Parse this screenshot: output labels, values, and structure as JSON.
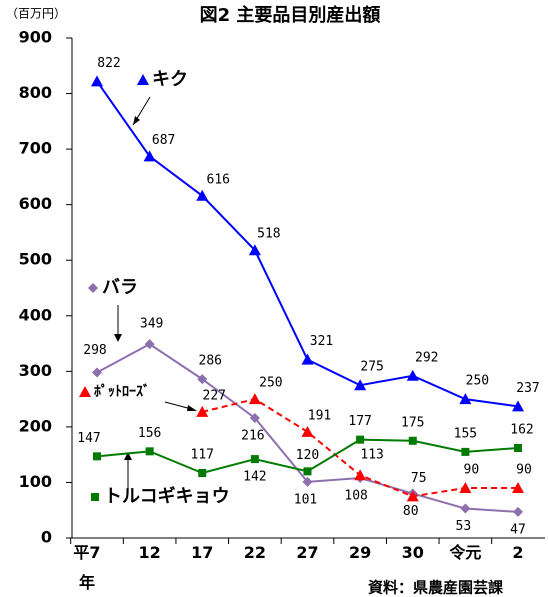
{
  "chart_data": {
    "type": "line",
    "title": "図2 主要品目別産出額",
    "y_unit": "（百万円）",
    "source": "資料：県農産園芸課",
    "categories": [
      "平7年",
      "12",
      "17",
      "22",
      "27",
      "29",
      "30",
      "令元",
      "2"
    ],
    "series": [
      {
        "name": "キク",
        "color": "#0000ff",
        "marker": "triangle",
        "dashed": false,
        "values": [
          822,
          687,
          616,
          518,
          321,
          275,
          292,
          250,
          237
        ]
      },
      {
        "name": "バラ",
        "color": "#8e6fae",
        "marker": "diamond",
        "dashed": false,
        "values": [
          298,
          349,
          286,
          216,
          101,
          108,
          80,
          53,
          47
        ]
      },
      {
        "name": "ﾎﾟｯﾄﾛｰｽﾞ",
        "color": "#ff0000",
        "marker": "triangle",
        "dashed": true,
        "values": [
          null,
          null,
          227,
          250,
          191,
          113,
          75,
          90,
          90
        ]
      },
      {
        "name": "トルコギキョウ",
        "color": "#007a00",
        "marker": "square",
        "dashed": false,
        "values": [
          147,
          156,
          117,
          142,
          120,
          177,
          175,
          155,
          162
        ]
      }
    ],
    "ylim": [
      0,
      900
    ],
    "yticks": [
      0,
      100,
      200,
      300,
      400,
      500,
      600,
      700,
      800,
      900
    ],
    "grid": false
  }
}
